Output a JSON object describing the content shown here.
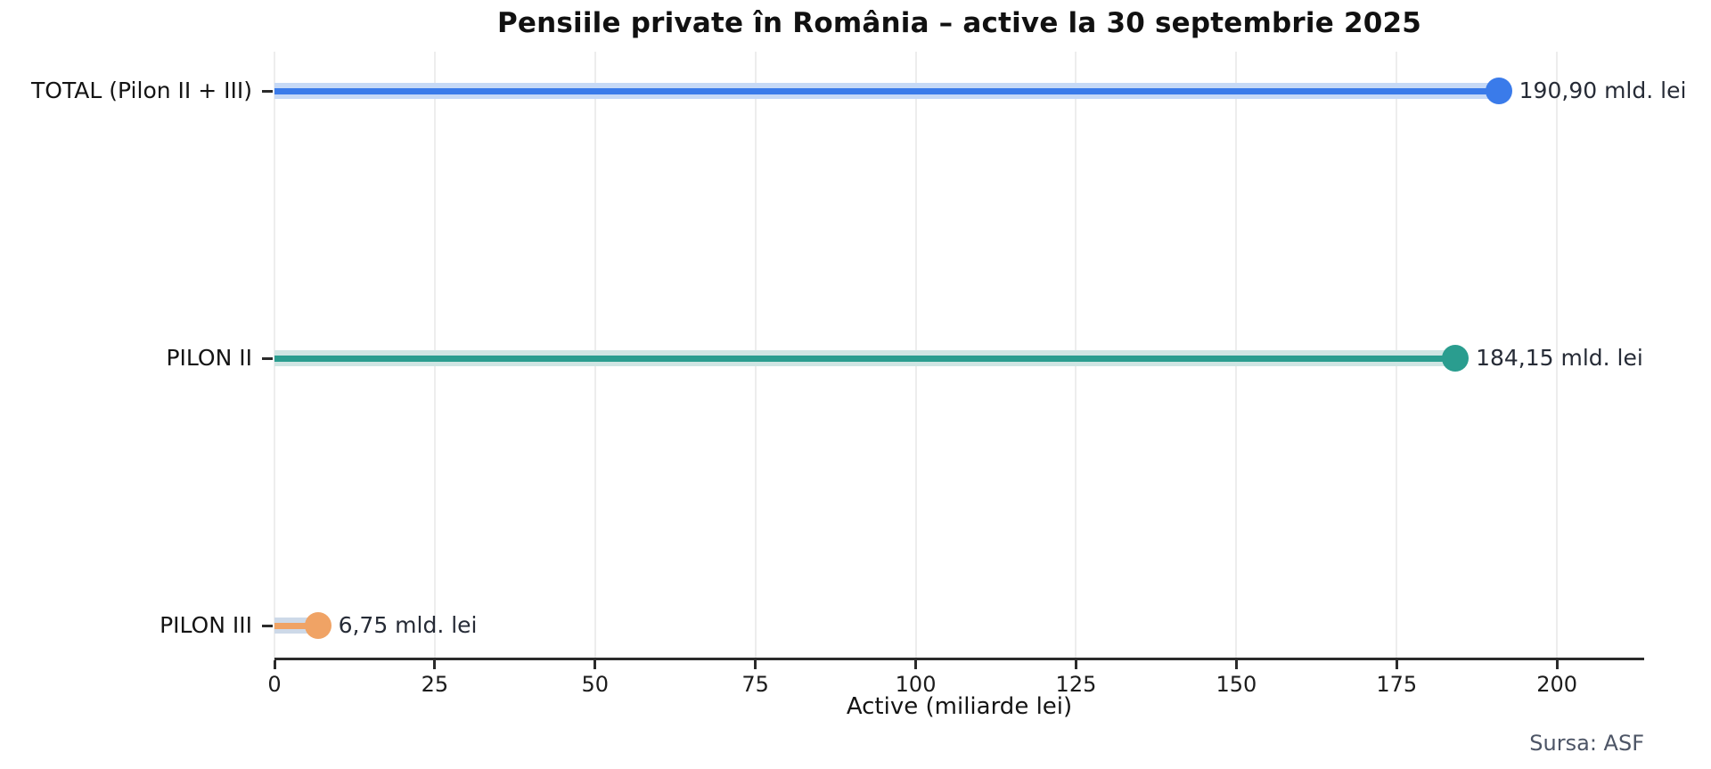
{
  "chart_data": {
    "type": "bar",
    "orientation": "horizontal-lollipop",
    "title": "Pensiile private în România – active la 30 septembrie 2025",
    "xlabel": "Active (miliarde lei)",
    "ylabel": "",
    "source": "Sursa: ASF",
    "unit": "mld. lei",
    "xlim": [
      0,
      213.6
    ],
    "x_ticks": [
      0,
      25,
      50,
      75,
      100,
      125,
      150,
      175,
      200
    ],
    "grid": "vertical-light",
    "legend": "none",
    "categories": [
      "TOTAL (Pilon II + III)",
      "PILON II",
      "PILON III"
    ],
    "values": [
      190.9,
      184.15,
      6.75
    ],
    "series": [
      {
        "name": "TOTAL (Pilon II + III)",
        "value": 190.9,
        "value_label": "190,90 mld. lei",
        "color": "#3a7bea",
        "band_color": "#c6d9f6"
      },
      {
        "name": "PILON II",
        "value": 184.15,
        "value_label": "184,15 mld. lei",
        "color": "#2a9d8f",
        "band_color": "#cfe5e3"
      },
      {
        "name": "PILON III",
        "value": 6.75,
        "value_label": "6,75 mld. lei",
        "color": "#f0a365",
        "band_color": "#cdd9e8"
      }
    ]
  },
  "style_colors": {
    "axis": "#2b2b2b",
    "grid": "#ededed",
    "title_text": "#111111",
    "label_text": "#141414",
    "source_text": "#4d5566"
  }
}
